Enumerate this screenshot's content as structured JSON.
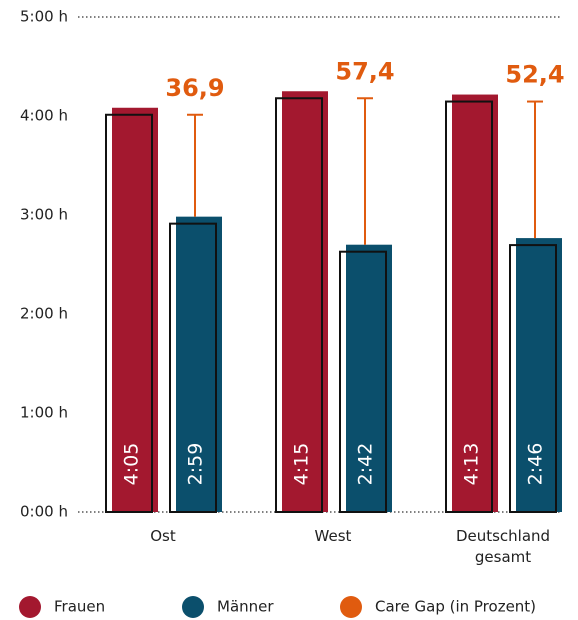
{
  "chart_data": {
    "type": "bar",
    "categories": [
      "Ost",
      "West",
      "Deutschland gesamt"
    ],
    "series": [
      {
        "name": "Frauen",
        "color": "#a3182f",
        "values": [
          4.0833,
          4.25,
          4.2167
        ],
        "value_labels": [
          "4:05",
          "4:15",
          "4:13"
        ]
      },
      {
        "name": "Männer",
        "color": "#0b4f6c",
        "values": [
          2.9833,
          2.7,
          2.7667
        ],
        "value_labels": [
          "2:59",
          "2:42",
          "2:46"
        ]
      }
    ],
    "care_gap": {
      "name": "Care Gap (in Prozent)",
      "color": "#e05b0f",
      "values": [
        36.9,
        57.4,
        52.4
      ],
      "value_labels": [
        "36,9",
        "57,4",
        "52,4"
      ]
    },
    "ylim": [
      0,
      5
    ],
    "yticks": [
      {
        "value": 0,
        "label": "0:00 h"
      },
      {
        "value": 1,
        "label": "1:00 h"
      },
      {
        "value": 2,
        "label": "2:00 h"
      },
      {
        "value": 3,
        "label": "3:00 h"
      },
      {
        "value": 4,
        "label": "4:00 h"
      },
      {
        "value": 5,
        "label": "5:00 h"
      }
    ]
  }
}
